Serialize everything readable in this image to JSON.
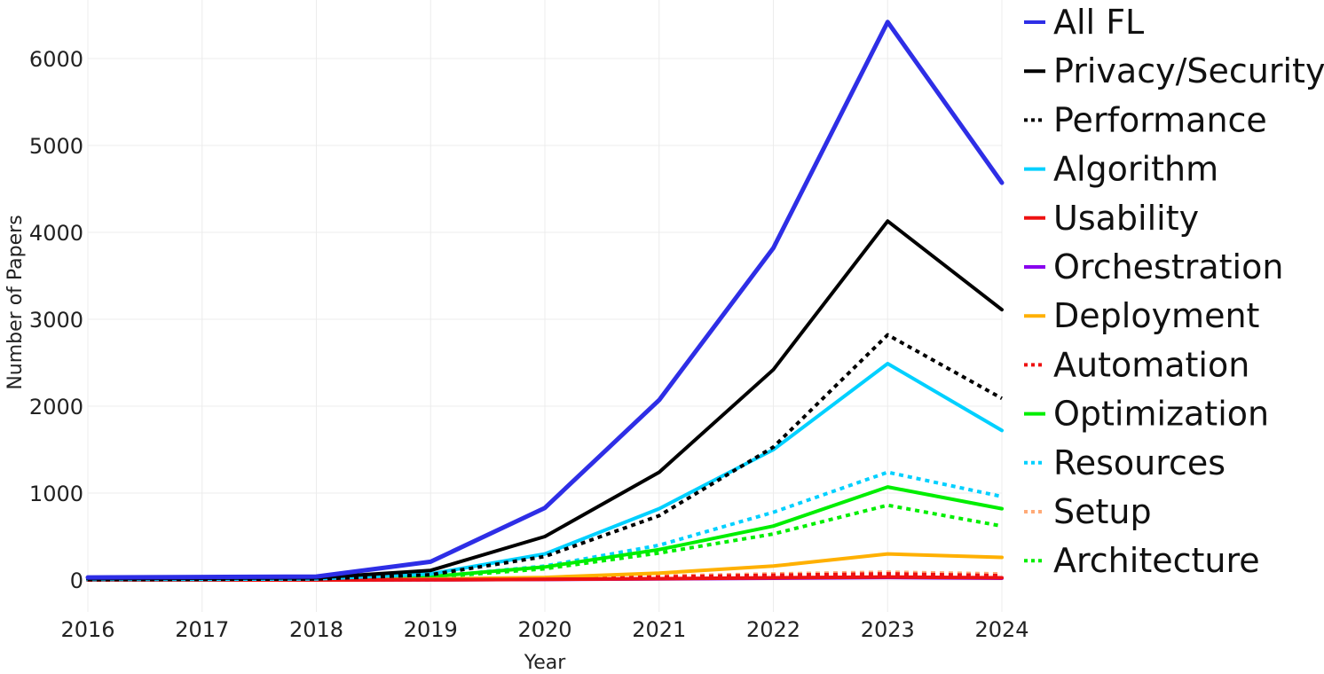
{
  "chart_data": {
    "type": "line",
    "title": "",
    "xlabel": "Year",
    "ylabel": "Number of Papers",
    "x": [
      2016,
      2017,
      2018,
      2019,
      2020,
      2021,
      2022,
      2023,
      2024
    ],
    "x_tick_labels": [
      "2016",
      "2017",
      "2018",
      "2019",
      "2020",
      "2021",
      "2022",
      "2023",
      "2024"
    ],
    "y_ticks": [
      0,
      1000,
      2000,
      3000,
      4000,
      5000,
      6000
    ],
    "y_tick_labels": [
      "0",
      "1000",
      "2000",
      "3000",
      "4000",
      "5000",
      "6000"
    ],
    "xlim": [
      2016,
      2024
    ],
    "ylim": [
      -400,
      6700
    ],
    "grid": true,
    "legend_position": "right",
    "series": [
      {
        "name": "All FL",
        "color": "#2e2ee6",
        "dash": "solid",
        "weight": "thick",
        "values": [
          30,
          35,
          40,
          210,
          830,
          2070,
          3820,
          6420,
          4570
        ]
      },
      {
        "name": "Privacy/Security",
        "color": "#000000",
        "dash": "solid",
        "weight": "normal",
        "values": [
          15,
          20,
          25,
          110,
          500,
          1240,
          2420,
          4130,
          3110
        ]
      },
      {
        "name": "Performance",
        "color": "#000000",
        "dash": "dotted",
        "weight": "normal",
        "values": [
          5,
          8,
          12,
          60,
          270,
          740,
          1530,
          2820,
          2090
        ]
      },
      {
        "name": "Algorithm",
        "color": "#00d0ff",
        "dash": "solid",
        "weight": "normal",
        "values": [
          5,
          8,
          12,
          70,
          300,
          820,
          1500,
          2490,
          1720
        ]
      },
      {
        "name": "Usability",
        "color": "#ee1111",
        "dash": "solid",
        "weight": "normal",
        "values": [
          0,
          0,
          0,
          2,
          8,
          15,
          25,
          35,
          25
        ]
      },
      {
        "name": "Orchestration",
        "color": "#8800ee",
        "dash": "solid",
        "weight": "normal",
        "values": [
          0,
          0,
          0,
          2,
          6,
          12,
          20,
          30,
          20
        ]
      },
      {
        "name": "Deployment",
        "color": "#ffb000",
        "dash": "solid",
        "weight": "normal",
        "values": [
          0,
          0,
          2,
          10,
          30,
          80,
          160,
          300,
          260
        ]
      },
      {
        "name": "Automation",
        "color": "#ee1111",
        "dash": "dotted",
        "weight": "normal",
        "values": [
          0,
          0,
          1,
          4,
          15,
          35,
          55,
          70,
          50
        ]
      },
      {
        "name": "Optimization",
        "color": "#00ee00",
        "dash": "solid",
        "weight": "normal",
        "values": [
          3,
          5,
          8,
          40,
          150,
          350,
          620,
          1070,
          820
        ]
      },
      {
        "name": "Resources",
        "color": "#00d0ff",
        "dash": "dotted",
        "weight": "normal",
        "values": [
          3,
          5,
          8,
          35,
          160,
          400,
          780,
          1240,
          960
        ]
      },
      {
        "name": "Setup",
        "color": "#ffaa77",
        "dash": "dotted",
        "weight": "normal",
        "values": [
          0,
          0,
          1,
          5,
          20,
          45,
          70,
          90,
          70
        ]
      },
      {
        "name": "Architecture",
        "color": "#00ee00",
        "dash": "dotted",
        "weight": "normal",
        "values": [
          2,
          4,
          6,
          30,
          130,
          310,
          530,
          860,
          620
        ]
      }
    ]
  }
}
